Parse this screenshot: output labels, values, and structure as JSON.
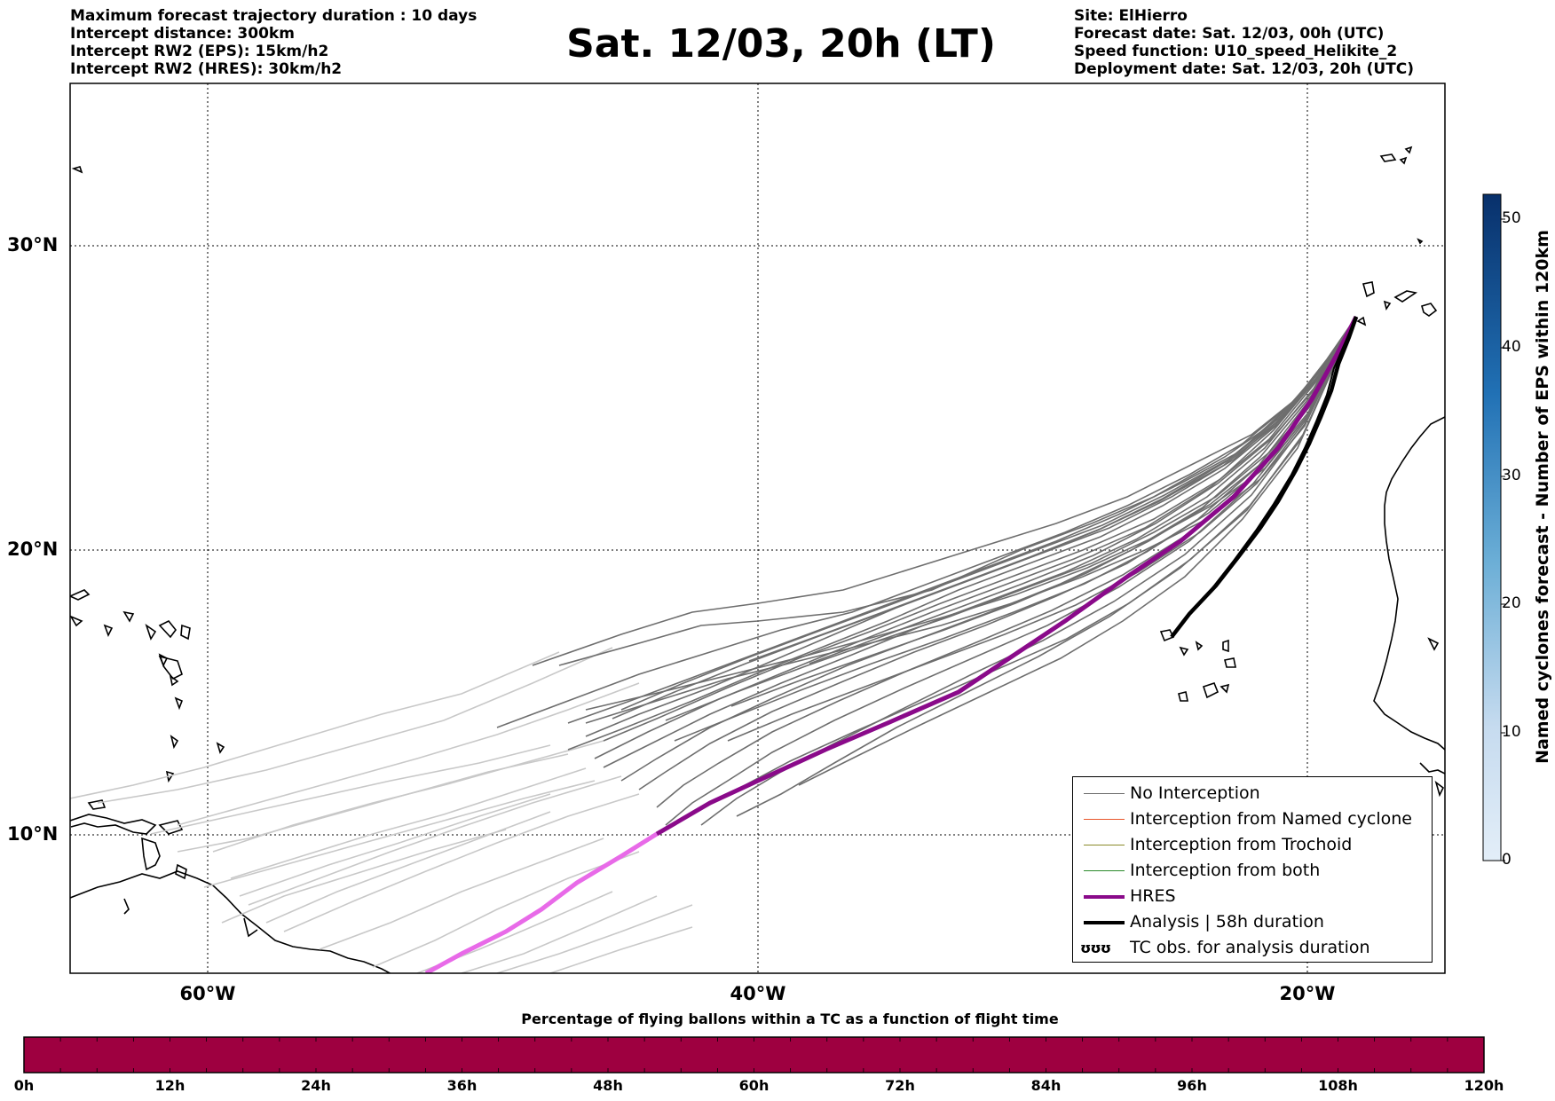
{
  "header": {
    "left_lines": [
      "Maximum forecast trajectory duration : 10 days",
      "Intercept distance: 300km",
      "Intercept RW2 (EPS):  15km/h2",
      "Intercept RW2 (HRES): 30km/h2"
    ],
    "right_lines": [
      "Site: ElHierro",
      "Forecast date: Sat. 12/03, 00h (UTC)",
      "Speed function: U10_speed_Helikite_2",
      "Deployment date: Sat. 12/03, 20h (UTC)"
    ],
    "title": "Sat. 12/03, 20h (LT)"
  },
  "map": {
    "lat_labels": [
      "30°N",
      "20°N",
      "10°N"
    ],
    "lon_labels": [
      "60°W",
      "40°W",
      "20°W"
    ],
    "colors": {
      "no_interception": "#6e6e6e",
      "faded_tracks": "#c8c8c8",
      "hres": "#8a0a8a",
      "hres_faded": "#e86ae8",
      "analysis": "#000000",
      "coast": "#000000"
    }
  },
  "legend": {
    "items": [
      {
        "label": "No Interception",
        "color": "#6e6e6e",
        "style": "thin"
      },
      {
        "label": "Interception from Named cyclone",
        "color": "#e8552a",
        "style": "thin"
      },
      {
        "label": "Interception from Trochoid",
        "color": "#8b8b2a",
        "style": "thin"
      },
      {
        "label": "Interception from both",
        "color": "#2a8a2a",
        "style": "thin"
      },
      {
        "label": "HRES",
        "color": "#8a0a8a",
        "style": "thick"
      },
      {
        "label": "Analysis | 58h duration",
        "color": "#000000",
        "style": "thick"
      },
      {
        "label": "TC obs. for analysis duration",
        "color": "#000000",
        "style": "symbol",
        "symbol": "ʊʊʊ"
      }
    ]
  },
  "bottom_bar": {
    "title": "Percentage of flying ballons within a TC as a function of flight time",
    "color": "#9e0040",
    "tick_labels": [
      "0h",
      "12h",
      "24h",
      "36h",
      "48h",
      "60h",
      "72h",
      "84h",
      "96h",
      "108h",
      "120h"
    ]
  },
  "colorbar": {
    "label": "Named cyclones forecast - Number of EPS within 120km",
    "ticks": [
      "0",
      "10",
      "20",
      "30",
      "40",
      "50"
    ],
    "min": 0,
    "max": 52,
    "color_low": "#e3eef8",
    "color_high": "#08306b"
  }
}
